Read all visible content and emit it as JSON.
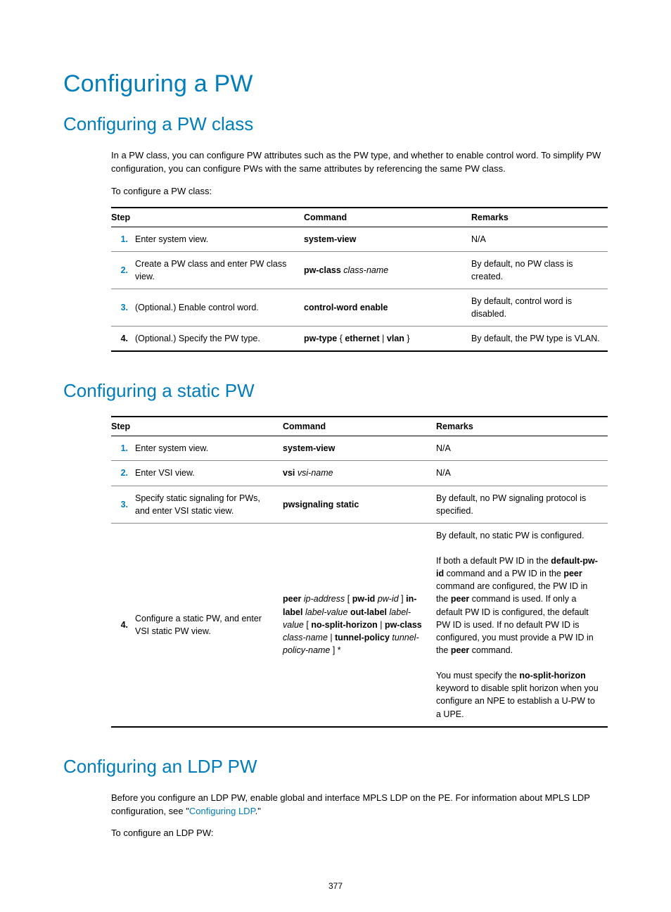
{
  "colors": {
    "accent": "#007dba",
    "text": "#000000",
    "bg": "#ffffff",
    "ruleThin": "#888888"
  },
  "typography": {
    "headingFont": "Futura / Century Gothic",
    "bodyFont": "Arial",
    "h1SizePt": 26,
    "h2SizePt": 20,
    "bodySizePt": 10
  },
  "pageNumber": "377",
  "h1": "Configuring a PW",
  "sec1": {
    "title": "Configuring a PW class",
    "para1": "In a PW class, you can configure PW attributes such as the PW type, and whether to enable control word. To simplify PW configuration, you can configure PWs with the same attributes by referencing the same PW class.",
    "para2": "To configure a PW class:",
    "table": {
      "colWidths": [
        "24px",
        "230px",
        "230px",
        "auto"
      ],
      "headers": [
        "Step",
        "Command",
        "Remarks"
      ],
      "rows": [
        {
          "n": "1.",
          "step": "Enter system view.",
          "cmd": "<b>system-view</b>",
          "rem": "N/A"
        },
        {
          "n": "2.",
          "step": "Create a PW class and enter PW class view.",
          "cmd": "<b>pw-class</b> <i>class-name</i>",
          "rem": "By default, no PW class is created."
        },
        {
          "n": "3.",
          "step": "(Optional.) Enable control word.",
          "cmd": "<b>control-word enable</b>",
          "rem": "By default, control word is disabled."
        },
        {
          "n": "4.",
          "numBlack": true,
          "step": "(Optional.) Specify the PW type.",
          "cmd": "<b>pw-type</b> { <b>ethernet</b> | <b>vlan</b> }",
          "rem": "By default, the PW type is VLAN."
        }
      ]
    }
  },
  "sec2": {
    "title": "Configuring a static PW",
    "table": {
      "colWidths": [
        "24px",
        "200px",
        "210px",
        "auto"
      ],
      "headers": [
        "Step",
        "Command",
        "Remarks"
      ],
      "rows": [
        {
          "n": "1.",
          "step": "Enter system view.",
          "cmd": "<b>system-view</b>",
          "rem": "N/A"
        },
        {
          "n": "2.",
          "step": "Enter VSI view.",
          "cmd": "<b>vsi</b> <i>vsi-name</i>",
          "rem": "N/A"
        },
        {
          "n": "3.",
          "step": "Specify static signaling for PWs, and enter VSI static view.",
          "cmd": "<b>pwsignaling static</b>",
          "rem": "By default, no PW signaling protocol is specified."
        },
        {
          "n": "4.",
          "numBlack": true,
          "step": "Configure a static PW, and enter VSI static PW view.",
          "cmd": "<b>peer</b> <i>ip-address</i> [ <b>pw-id</b> <i>pw-id</i> ] <b>in-label</b> <i>label-value</i> <b>out-label</b> <i>label-value</i> [ <b>no-split-horizon</b> | <b>pw-class</b> <i>class-name</i> | <b>tunnel-policy</b> <i>tunnel-policy-name</i> ] *",
          "rem": "By default, no static PW is configured.<br><br>If both a default PW ID in the <b>default-pw-id</b> command and a PW ID in the <b>peer</b> command are configured, the PW ID in the <b>peer</b> command is used. If only a default PW ID is configured, the default PW ID is used. If no default PW ID is configured, you must provide a PW ID in the <b>peer</b> command.<br><br>You must specify the <b>no-split-horizon</b> keyword to disable split horizon when you configure an NPE to establish a U-PW to a UPE."
        }
      ]
    }
  },
  "sec3": {
    "title": "Configuring an LDP PW",
    "para1_pre": "Before you configure an LDP PW, enable global and interface MPLS LDP on the PE. For information about MPLS LDP configuration, see \"",
    "para1_link": "Configuring LDP",
    "para1_post": ".\"",
    "para2": "To configure an LDP PW:"
  }
}
